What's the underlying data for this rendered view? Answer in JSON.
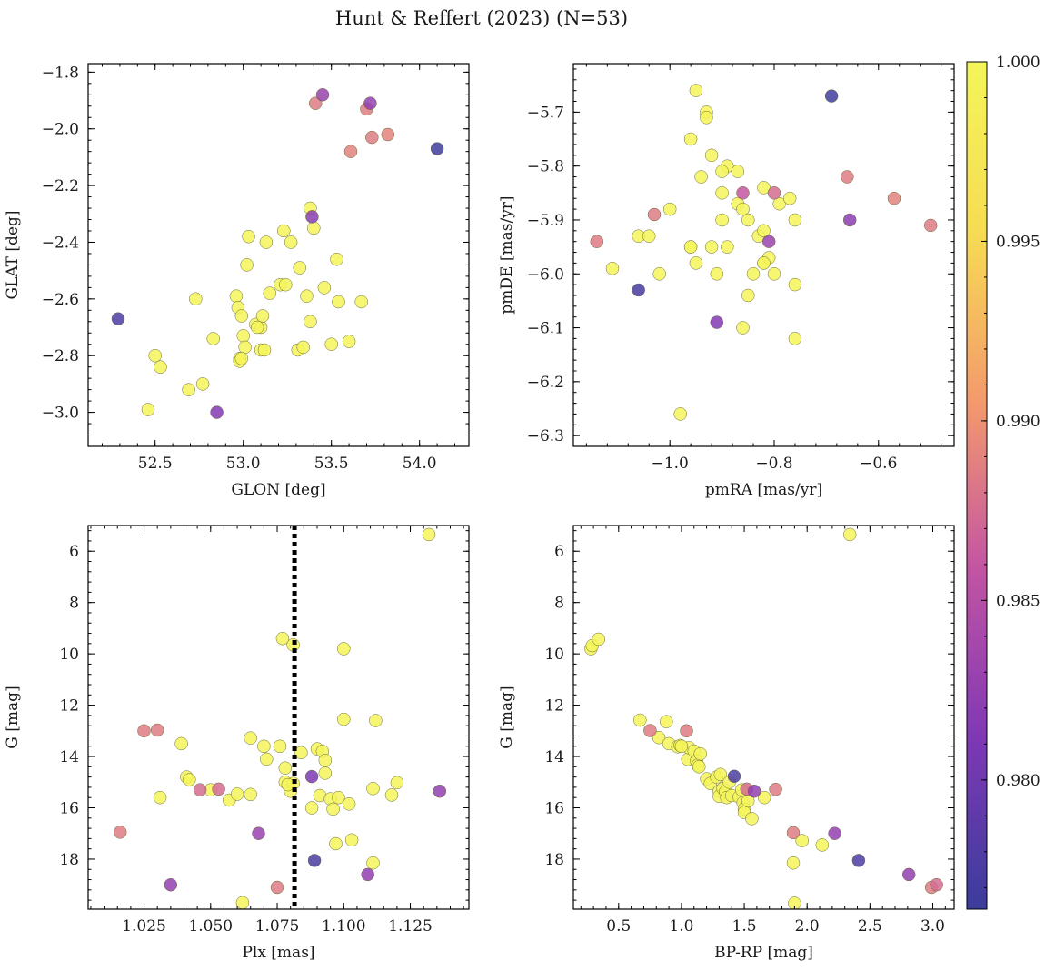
{
  "figure_title": "Hunt & Reffert (2023) (N=53)",
  "colorbar": {
    "min": 0.9764,
    "max": 1.0,
    "ticks": [
      0.98,
      0.985,
      0.99,
      0.995,
      1.0
    ],
    "tick_labels": [
      "0.980",
      "0.985",
      "0.990",
      "0.995",
      "1.000"
    ],
    "colormap": "plasma",
    "stops": [
      "#3a3d9c",
      "#7e38b5",
      "#c254a3",
      "#f49a6c",
      "#f6dc52",
      "#f4f55a"
    ]
  },
  "chart_data": [
    {
      "type": "scatter",
      "id": "glon-glat",
      "xlabel": "GLON [deg]",
      "ylabel": "GLAT [deg]",
      "xlim": [
        52.12,
        54.28
      ],
      "ylim": [
        -3.12,
        -1.77
      ],
      "xticks": [
        52.5,
        53.0,
        53.5,
        54.0
      ],
      "xtick_labels": [
        "52.5",
        "53.0",
        "53.5",
        "54.0"
      ],
      "yticks": [
        -3.0,
        -2.8,
        -2.6,
        -2.4,
        -2.2,
        -2.0,
        -1.8
      ],
      "ytick_labels": [
        "−3.0",
        "−2.8",
        "−2.6",
        "−2.4",
        "−2.2",
        "−2.0",
        "−1.8"
      ],
      "x": [
        52.29,
        52.46,
        52.5,
        52.53,
        52.69,
        52.73,
        52.77,
        52.83,
        52.85,
        52.96,
        52.97,
        52.98,
        52.98,
        52.99,
        53.0,
        53.01,
        53.02,
        53.03,
        53.07,
        53.1,
        53.1,
        53.11,
        53.12,
        53.13,
        53.21,
        53.23,
        53.24,
        53.27,
        53.31,
        53.32,
        53.34,
        53.36,
        53.38,
        53.38,
        53.39,
        53.4,
        53.41,
        53.45,
        53.46,
        53.5,
        53.53,
        53.54,
        53.6,
        53.61,
        53.67,
        53.7,
        53.72,
        53.73,
        53.82,
        54.1,
        53.08,
        53.15,
        52.99
      ],
      "y": [
        -2.67,
        -2.99,
        -2.8,
        -2.84,
        -2.92,
        -2.6,
        -2.9,
        -2.74,
        -3.0,
        -2.59,
        -2.63,
        -2.81,
        -2.82,
        -2.66,
        -2.73,
        -2.77,
        -2.48,
        -2.38,
        -2.69,
        -2.7,
        -2.78,
        -2.66,
        -2.78,
        -2.4,
        -2.55,
        -2.36,
        -2.55,
        -2.4,
        -2.78,
        -2.49,
        -2.77,
        -2.59,
        -2.68,
        -2.28,
        -2.31,
        -2.35,
        -1.91,
        -1.88,
        -2.56,
        -2.76,
        -2.46,
        -2.61,
        -2.75,
        -2.08,
        -2.61,
        -1.93,
        -1.91,
        -2.03,
        -2.02,
        -2.07,
        -2.7,
        -2.58,
        -2.81
      ],
      "c": [
        0.9775,
        1,
        1,
        1,
        1,
        1,
        1,
        1,
        0.9815,
        1,
        1,
        1,
        1,
        1,
        1,
        1,
        1,
        1,
        1,
        1,
        1,
        1,
        1,
        1,
        1,
        1,
        1,
        1,
        1,
        1,
        1,
        1,
        1,
        1,
        0.982,
        1,
        0.9885,
        0.983,
        1,
        1,
        1,
        1,
        1,
        0.989,
        1,
        0.9885,
        0.9825,
        0.9885,
        0.989,
        0.9768,
        1,
        1,
        1
      ]
    },
    {
      "type": "scatter",
      "id": "pmra-pmde",
      "xlabel": "pmRA [mas/yr]",
      "ylabel": "pmDE [mas/yr]",
      "xlim": [
        -1.185,
        -0.455
      ],
      "ylim": [
        -6.32,
        -5.61
      ],
      "xticks": [
        -1.0,
        -0.8,
        -0.6
      ],
      "xtick_labels": [
        "−1.0",
        "−0.8",
        "−0.6"
      ],
      "yticks": [
        -6.3,
        -6.2,
        -6.1,
        -6.0,
        -5.9,
        -5.8,
        -5.7
      ],
      "ytick_labels": [
        "−6.3",
        "−6.2",
        "−6.1",
        "−6.0",
        "−5.9",
        "−5.8",
        "−5.7"
      ],
      "x": [
        -1.14,
        -1.11,
        -1.06,
        -1.06,
        -1.04,
        -1.03,
        -1.02,
        -1.0,
        -0.98,
        -0.96,
        -0.96,
        -0.95,
        -0.95,
        -0.94,
        -0.93,
        -0.93,
        -0.92,
        -0.91,
        -0.91,
        -0.9,
        -0.9,
        -0.89,
        -0.89,
        -0.87,
        -0.87,
        -0.86,
        -0.86,
        -0.86,
        -0.85,
        -0.85,
        -0.84,
        -0.83,
        -0.82,
        -0.82,
        -0.82,
        -0.81,
        -0.81,
        -0.8,
        -0.8,
        -0.79,
        -0.77,
        -0.76,
        -0.76,
        -0.76,
        -0.69,
        -0.66,
        -0.655,
        -0.57,
        -0.5,
        -0.96,
        -0.92,
        -0.82,
        -0.9
      ],
      "y": [
        -5.94,
        -5.99,
        -5.93,
        -6.03,
        -5.93,
        -5.89,
        -6.0,
        -5.88,
        -6.26,
        -5.75,
        -5.95,
        -5.66,
        -5.98,
        -5.82,
        -5.7,
        -5.71,
        -5.78,
        -6.0,
        -6.09,
        -5.9,
        -5.85,
        -5.8,
        -5.95,
        -5.81,
        -5.87,
        -5.88,
        -6.1,
        -5.85,
        -6.04,
        -5.9,
        -6.0,
        -5.93,
        -5.98,
        -5.84,
        -5.92,
        -5.94,
        -5.97,
        -5.85,
        -6.0,
        -5.87,
        -5.86,
        -6.12,
        -6.02,
        -5.9,
        -5.67,
        -5.82,
        -5.9,
        -5.86,
        -5.91,
        -5.95,
        -5.95,
        -5.98,
        -5.81
      ],
      "c": [
        0.9885,
        1,
        1,
        0.9773,
        1,
        0.9885,
        1,
        1,
        1,
        1,
        1,
        1,
        1,
        1,
        1,
        1,
        1,
        1,
        0.9815,
        1,
        1,
        1,
        1,
        1,
        1,
        1,
        1,
        0.986,
        1,
        1,
        1,
        1,
        1,
        1,
        1,
        0.983,
        1,
        0.9875,
        1,
        1,
        1,
        1,
        1,
        1,
        0.9768,
        0.9885,
        0.982,
        0.989,
        0.9885,
        1,
        1,
        1,
        1
      ]
    },
    {
      "type": "scatter",
      "id": "plx-g",
      "xlabel": "Plx [mas]",
      "ylabel": "G [mag]",
      "xlim": [
        1.004,
        1.147
      ],
      "ylim": [
        19.95,
        5.0
      ],
      "xticks": [
        1.025,
        1.05,
        1.075,
        1.1,
        1.125
      ],
      "xtick_labels": [
        "1.025",
        "1.050",
        "1.075",
        "1.100",
        "1.125"
      ],
      "yticks": [
        6,
        8,
        10,
        12,
        14,
        16,
        18
      ],
      "ytick_labels": [
        "6",
        "8",
        "10",
        "12",
        "14",
        "16",
        "18"
      ],
      "reference_line": {
        "x": 1.0815,
        "style": "dotted"
      },
      "x": [
        1.016,
        1.025,
        1.03,
        1.031,
        1.035,
        1.039,
        1.041,
        1.042,
        1.046,
        1.05,
        1.053,
        1.057,
        1.06,
        1.062,
        1.065,
        1.065,
        1.068,
        1.07,
        1.071,
        1.075,
        1.076,
        1.077,
        1.078,
        1.078,
        1.08,
        1.081,
        1.081,
        1.084,
        1.088,
        1.088,
        1.089,
        1.09,
        1.091,
        1.092,
        1.093,
        1.093,
        1.095,
        1.096,
        1.097,
        1.098,
        1.1,
        1.1,
        1.102,
        1.103,
        1.109,
        1.111,
        1.111,
        1.112,
        1.118,
        1.12,
        1.132,
        1.136,
        1.079
      ],
      "y": [
        16.95,
        13.0,
        12.97,
        15.6,
        19.0,
        13.5,
        14.8,
        14.9,
        15.3,
        15.3,
        15.27,
        15.7,
        15.47,
        19.7,
        15.48,
        13.28,
        17.0,
        13.6,
        14.1,
        19.1,
        13.6,
        9.4,
        14.45,
        15.0,
        15.35,
        9.65,
        15.05,
        13.85,
        14.78,
        16.0,
        18.05,
        13.7,
        15.52,
        13.8,
        14.15,
        14.65,
        15.65,
        16.05,
        17.4,
        15.6,
        12.55,
        9.8,
        15.85,
        17.25,
        18.6,
        15.25,
        18.15,
        12.6,
        15.5,
        15.02,
        5.35,
        15.35,
        15.1
      ],
      "c": [
        0.9885,
        0.9885,
        0.9885,
        1,
        0.9825,
        1,
        1,
        1,
        0.9875,
        1,
        0.9875,
        1,
        1,
        1,
        1,
        1,
        0.983,
        1,
        1,
        0.9885,
        1,
        1,
        1,
        1,
        1,
        1,
        1,
        1,
        0.981,
        1,
        0.9775,
        1,
        1,
        1,
        1,
        1,
        1,
        1,
        1,
        1,
        1,
        1,
        1,
        1,
        0.9825,
        1,
        1,
        1,
        1,
        1,
        1,
        0.9825,
        1
      ]
    },
    {
      "type": "scatter",
      "id": "bprp-g",
      "xlabel": "BP-RP [mag]",
      "ylabel": "G [mag]",
      "xlim": [
        0.14,
        3.17
      ],
      "ylim": [
        19.95,
        5.0
      ],
      "xticks": [
        0.5,
        1.0,
        1.5,
        2.0,
        2.5,
        3.0
      ],
      "xtick_labels": [
        "0.5",
        "1.0",
        "1.5",
        "2.0",
        "2.5",
        "3.0"
      ],
      "yticks": [
        6,
        8,
        10,
        12,
        14,
        16,
        18
      ],
      "ytick_labels": [
        "6",
        "8",
        "10",
        "12",
        "14",
        "16",
        "18"
      ],
      "x": [
        0.28,
        0.29,
        0.34,
        0.67,
        0.75,
        0.82,
        0.88,
        0.9,
        0.97,
        0.99,
        1.04,
        1.05,
        1.06,
        1.1,
        1.12,
        1.13,
        1.14,
        1.15,
        1.2,
        1.23,
        1.28,
        1.3,
        1.3,
        1.31,
        1.33,
        1.35,
        1.36,
        1.38,
        1.4,
        1.42,
        1.46,
        1.48,
        1.49,
        1.5,
        1.5,
        1.52,
        1.53,
        1.56,
        1.58,
        1.66,
        1.75,
        1.89,
        1.89,
        1.9,
        1.96,
        2.12,
        2.22,
        2.34,
        2.41,
        2.81,
        2.99,
        3.03,
        1.0
      ],
      "y": [
        9.8,
        9.68,
        9.43,
        12.58,
        12.99,
        13.26,
        12.64,
        13.5,
        13.62,
        13.57,
        13.0,
        14.11,
        13.66,
        13.79,
        14.17,
        14.34,
        14.4,
        13.9,
        14.87,
        15.05,
        14.8,
        15.35,
        15.55,
        14.7,
        15.25,
        15.38,
        15.6,
        15.0,
        15.52,
        14.77,
        15.58,
        15.3,
        15.8,
        16.05,
        16.18,
        15.27,
        15.73,
        16.42,
        15.35,
        15.6,
        15.28,
        16.97,
        18.15,
        19.72,
        17.28,
        17.45,
        17.0,
        5.35,
        18.05,
        18.6,
        19.1,
        19.0,
        13.6
      ],
      "c": [
        1,
        1,
        1,
        1,
        0.9885,
        1,
        1,
        1,
        1,
        1,
        0.9885,
        1,
        1,
        1,
        1,
        1,
        1,
        1,
        1,
        1,
        1,
        1,
        1,
        1,
        1,
        1,
        1,
        1,
        1,
        0.9775,
        1,
        1,
        1,
        1,
        1,
        0.9875,
        1,
        1,
        0.9825,
        1,
        0.9885,
        0.9885,
        1,
        1,
        1,
        1,
        0.9825,
        1,
        0.9775,
        0.9825,
        0.9885,
        0.9875,
        1
      ]
    }
  ]
}
